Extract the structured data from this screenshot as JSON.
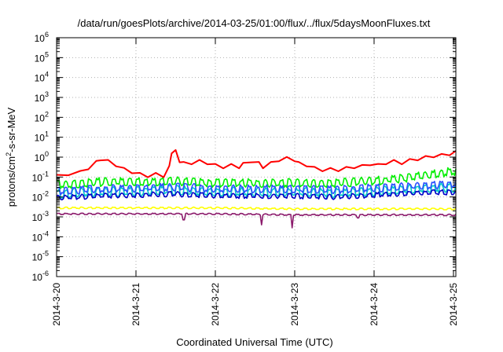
{
  "chart_data": {
    "type": "line",
    "title": "/data/run/goesPlots/archive/2014-03-25/01:00/flux/../flux/5daysMoonFluxes.txt",
    "xlabel": "Coordinated Universal Time (UTC)",
    "ylabel": {
      "base": "protons/cm",
      "sup": "2",
      "rest": "-s-sr-MeV"
    },
    "y_scale": "log",
    "ylim_exponent": [
      -6,
      6
    ],
    "y_ticks": [
      {
        "base": "10",
        "exp": "6"
      },
      {
        "base": "10",
        "exp": "5"
      },
      {
        "base": "10",
        "exp": "4"
      },
      {
        "base": "10",
        "exp": "3"
      },
      {
        "base": "10",
        "exp": "2"
      },
      {
        "base": "10",
        "exp": "1"
      },
      {
        "base": "10",
        "exp": "0"
      },
      {
        "base": "10",
        "exp": "-1"
      },
      {
        "base": "10",
        "exp": "-2"
      },
      {
        "base": "10",
        "exp": "-3"
      },
      {
        "base": "10",
        "exp": "-4"
      },
      {
        "base": "10",
        "exp": "-5"
      },
      {
        "base": "10",
        "exp": "-6"
      }
    ],
    "x_ticks": [
      "2014-3-20",
      "2014-3-21",
      "2014-3-22",
      "2014-3-23",
      "2014-3-24",
      "2014-3-25"
    ],
    "x_range_days": [
      0,
      5.03
    ],
    "grid": true,
    "series": [
      {
        "color": "#ff0000",
        "points": [
          [
            0,
            -0.95
          ],
          [
            0.15,
            -0.85
          ],
          [
            0.3,
            -0.75
          ],
          [
            0.4,
            -0.55
          ],
          [
            0.5,
            -0.25
          ],
          [
            0.55,
            -0.1
          ],
          [
            0.65,
            -0.2
          ],
          [
            0.75,
            -0.4
          ],
          [
            0.85,
            -0.6
          ],
          [
            0.95,
            -0.75
          ],
          [
            1.05,
            -0.85
          ],
          [
            1.15,
            -0.95
          ],
          [
            1.25,
            -0.85
          ],
          [
            1.35,
            -0.95
          ],
          [
            1.42,
            -0.5
          ],
          [
            1.45,
            0.25
          ],
          [
            1.5,
            0.3
          ],
          [
            1.55,
            -0.2
          ],
          [
            1.6,
            -0.3
          ],
          [
            1.7,
            -0.3
          ],
          [
            1.8,
            -0.2
          ],
          [
            1.9,
            -0.3
          ],
          [
            2.0,
            -0.4
          ],
          [
            2.1,
            -0.5
          ],
          [
            2.2,
            -0.4
          ],
          [
            2.3,
            -0.5
          ],
          [
            2.35,
            -0.35
          ],
          [
            2.45,
            -0.2
          ],
          [
            2.55,
            -0.3
          ],
          [
            2.6,
            -0.5
          ],
          [
            2.7,
            -0.3
          ],
          [
            2.8,
            -0.15
          ],
          [
            2.9,
            -0.05
          ],
          [
            3.0,
            -0.15
          ],
          [
            3.05,
            -0.3
          ],
          [
            3.15,
            -0.4
          ],
          [
            3.25,
            -0.55
          ],
          [
            3.35,
            -0.65
          ],
          [
            3.45,
            -0.6
          ],
          [
            3.55,
            -0.65
          ],
          [
            3.65,
            -0.55
          ],
          [
            3.75,
            -0.5
          ],
          [
            3.85,
            -0.45
          ],
          [
            3.95,
            -0.35
          ],
          [
            4.05,
            -0.4
          ],
          [
            4.15,
            -0.3
          ],
          [
            4.25,
            -0.2
          ],
          [
            4.35,
            -0.3
          ],
          [
            4.45,
            -0.15
          ],
          [
            4.55,
            -0.1
          ],
          [
            4.65,
            0.0
          ],
          [
            4.75,
            0.05
          ],
          [
            4.85,
            0.1
          ],
          [
            4.95,
            0.15
          ],
          [
            5.03,
            0.25
          ]
        ]
      },
      {
        "color": "#00ee00",
        "base": [
          [
            0,
            -1.4
          ],
          [
            0.5,
            -1.25
          ],
          [
            1.0,
            -1.25
          ],
          [
            1.5,
            -1.2
          ],
          [
            2.0,
            -1.3
          ],
          [
            2.5,
            -1.3
          ],
          [
            3.0,
            -1.3
          ],
          [
            3.5,
            -1.3
          ],
          [
            4.0,
            -1.2
          ],
          [
            4.5,
            -1.0
          ],
          [
            5.03,
            -0.7
          ]
        ],
        "amp": 0.3
      },
      {
        "color": "#00c8c8",
        "base": [
          [
            0,
            -1.85
          ],
          [
            0.5,
            -1.75
          ],
          [
            1.0,
            -1.7
          ],
          [
            1.5,
            -1.65
          ],
          [
            2.0,
            -1.75
          ],
          [
            2.5,
            -1.75
          ],
          [
            3.0,
            -1.75
          ],
          [
            3.5,
            -1.8
          ],
          [
            4.0,
            -1.7
          ],
          [
            4.5,
            -1.6
          ],
          [
            5.03,
            -1.5
          ]
        ],
        "amp": 0.35
      },
      {
        "color": "#2a50ff",
        "base": [
          [
            0,
            -1.7
          ],
          [
            0.5,
            -1.6
          ],
          [
            1.0,
            -1.55
          ],
          [
            1.5,
            -1.5
          ],
          [
            2.0,
            -1.6
          ],
          [
            2.5,
            -1.6
          ],
          [
            3.0,
            -1.6
          ],
          [
            3.5,
            -1.65
          ],
          [
            4.0,
            -1.55
          ],
          [
            4.5,
            -1.45
          ],
          [
            5.03,
            -1.35
          ]
        ],
        "amp": 0.28
      },
      {
        "color": "#0000c8",
        "base": [
          [
            0,
            -2.05
          ],
          [
            0.5,
            -1.95
          ],
          [
            1.0,
            -1.9
          ],
          [
            1.5,
            -1.85
          ],
          [
            2.0,
            -1.95
          ],
          [
            2.5,
            -1.95
          ],
          [
            3.0,
            -1.95
          ],
          [
            3.5,
            -2.0
          ],
          [
            4.0,
            -1.9
          ],
          [
            4.5,
            -1.8
          ],
          [
            5.03,
            -1.75
          ]
        ],
        "amp": 0.18
      },
      {
        "color": "#ffff00",
        "base": [
          [
            0,
            -2.55
          ],
          [
            1.0,
            -2.55
          ],
          [
            2.0,
            -2.55
          ],
          [
            3.0,
            -2.6
          ],
          [
            4.0,
            -2.6
          ],
          [
            5.03,
            -2.6
          ]
        ],
        "amp": 0.06
      },
      {
        "color": "#8b1a6b",
        "base": [
          [
            0,
            -2.85
          ],
          [
            1.0,
            -2.85
          ],
          [
            2.0,
            -2.85
          ],
          [
            3.0,
            -2.9
          ],
          [
            4.0,
            -2.9
          ],
          [
            5.03,
            -2.9
          ]
        ],
        "amp": 0.05,
        "dips": [
          [
            1.6,
            -3.15
          ],
          [
            2.58,
            -3.4
          ],
          [
            2.97,
            -3.55
          ],
          [
            3.8,
            -3.05
          ]
        ]
      }
    ]
  }
}
